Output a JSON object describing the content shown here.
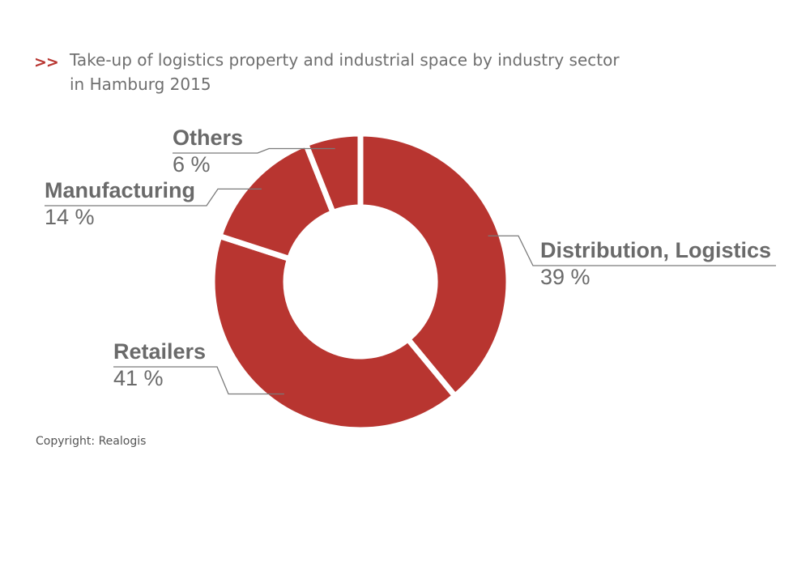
{
  "header": {
    "marker": ">>",
    "title_line1": "Take-up of logistics property and industrial space by industry sector",
    "title_line2": "in Hamburg 2015"
  },
  "copyright": "Copyright: Realogis",
  "colors": {
    "slice": "#b83530",
    "label": "#6a6a6a",
    "accent": "#b83530"
  },
  "chart_data": {
    "type": "pie",
    "donut": true,
    "unit": "%",
    "slices": [
      {
        "name": "Distribution, Logistics",
        "value": 39,
        "value_label": "39 %"
      },
      {
        "name": "Retailers",
        "value": 41,
        "value_label": "41 %"
      },
      {
        "name": "Manufacturing",
        "value": 14,
        "value_label": "14 %"
      },
      {
        "name": "Others",
        "value": 6,
        "value_label": "6 %"
      }
    ]
  }
}
